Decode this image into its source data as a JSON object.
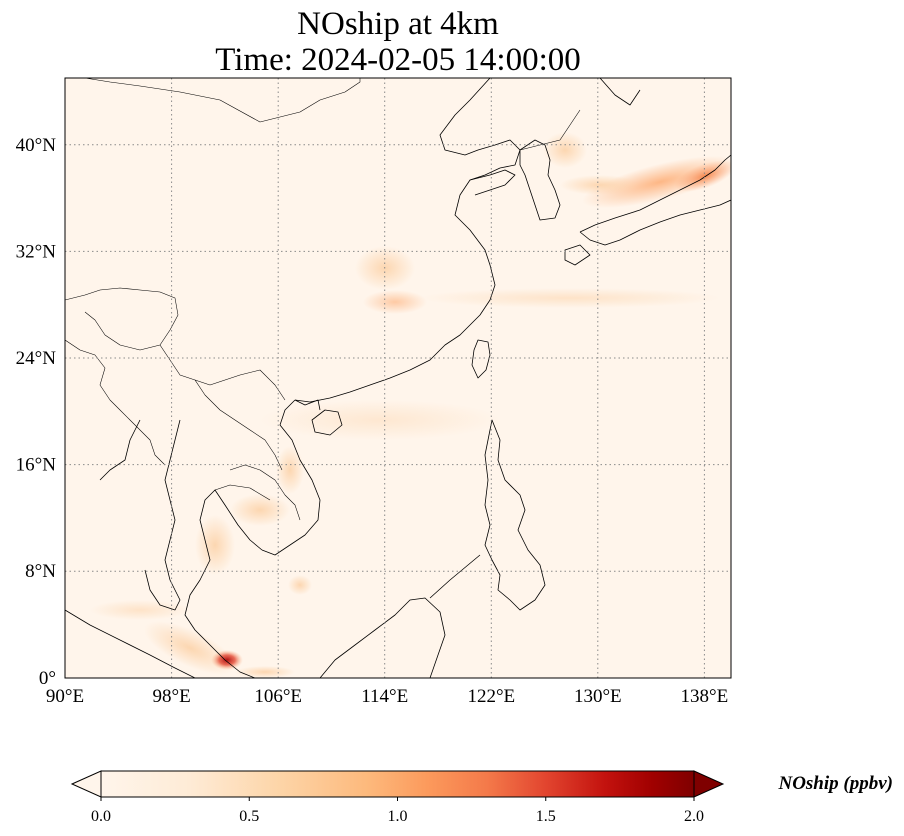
{
  "title": {
    "line1": "NOship at 4km",
    "line2": "Time: 2024-02-05 14:00:00"
  },
  "map": {
    "projection": "PlateCarree",
    "lon_range": [
      90,
      140
    ],
    "lat_range": [
      0,
      44
    ],
    "gridlines": "dotted grey",
    "xticks": [
      {
        "value": 90,
        "label": "90°E"
      },
      {
        "value": 98,
        "label": "98°E"
      },
      {
        "value": 106,
        "label": "106°E"
      },
      {
        "value": 114,
        "label": "114°E"
      },
      {
        "value": 122,
        "label": "122°E"
      },
      {
        "value": 130,
        "label": "130°E"
      },
      {
        "value": 138,
        "label": "138°E"
      }
    ],
    "yticks": [
      {
        "value": 0,
        "label": "0°"
      },
      {
        "value": 8,
        "label": "8°N"
      },
      {
        "value": 16,
        "label": "16°N"
      },
      {
        "value": 24,
        "label": "24°N"
      },
      {
        "value": 32,
        "label": "32°N"
      },
      {
        "value": 40,
        "label": "40°N"
      }
    ],
    "background_color": "#fff5eb",
    "features": [
      "coastlines",
      "country borders"
    ]
  },
  "colorbar": {
    "label": "NOship (ppbv)",
    "colormap": "OrRd-like (cream to dark red)",
    "range": [
      0.0,
      2.0
    ],
    "extend": "both",
    "ticks": [
      {
        "value": 0.0,
        "label": "0.0"
      },
      {
        "value": 0.5,
        "label": "0.5"
      },
      {
        "value": 1.0,
        "label": "1.0"
      },
      {
        "value": 1.5,
        "label": "1.5"
      },
      {
        "value": 2.0,
        "label": "2.0"
      }
    ],
    "stops": [
      "#fff5eb",
      "#fee6ce",
      "#fdd0a2",
      "#fdae6b",
      "#fd8d3c",
      "#f16913",
      "#d94801",
      "#a60000",
      "#7f0000"
    ]
  }
}
